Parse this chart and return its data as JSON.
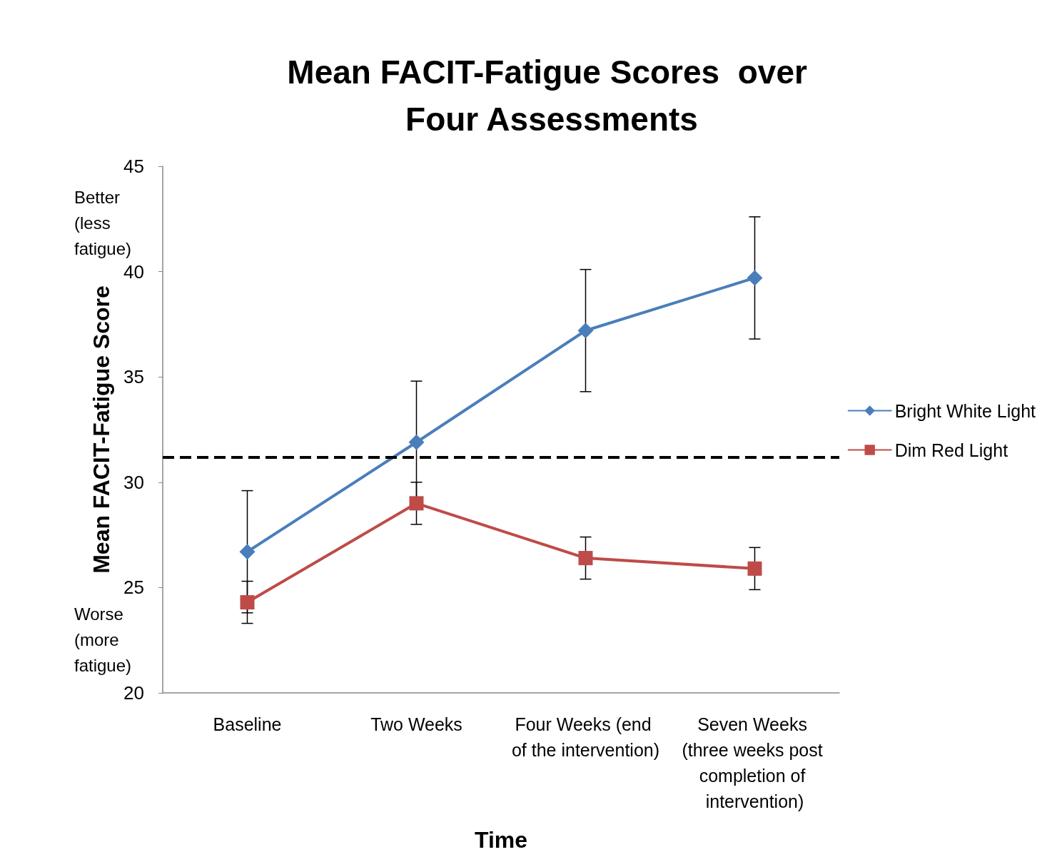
{
  "chart_data": {
    "type": "line",
    "title": "Mean FACIT-Fatigue Scores  over Four Assessments",
    "xlabel": "Time",
    "ylabel": "Mean FACIT-Fatigue Score",
    "categories": [
      "Baseline",
      "Two Weeks",
      "Four Weeks (end of the intervention)",
      "Seven Weeks (three weeks post completion of intervention)"
    ],
    "series": [
      {
        "name": "Bright White Light",
        "color": "#4a7ebb",
        "marker": "diamond",
        "values": [
          26.7,
          31.9,
          37.2,
          39.7
        ],
        "errors": [
          2.9,
          2.9,
          2.9,
          2.9
        ]
      },
      {
        "name": "Dim Red Light",
        "color": "#be4b48",
        "marker": "square",
        "values": [
          24.3,
          29.0,
          26.4,
          25.9
        ],
        "errors": [
          1.0,
          1.0,
          1.0,
          1.0
        ]
      }
    ],
    "ylim": [
      20,
      45
    ],
    "yticks": [
      20,
      25,
      30,
      35,
      40,
      45
    ],
    "ref_lines": [
      {
        "axis": "y",
        "value": 31.2,
        "color": "#000000",
        "line_style": "dashed"
      }
    ],
    "annotations": [
      "Better (less fatigue)",
      "Worse (more fatigue)"
    ],
    "grid": false,
    "legend": "right",
    "line_style": "solid"
  }
}
